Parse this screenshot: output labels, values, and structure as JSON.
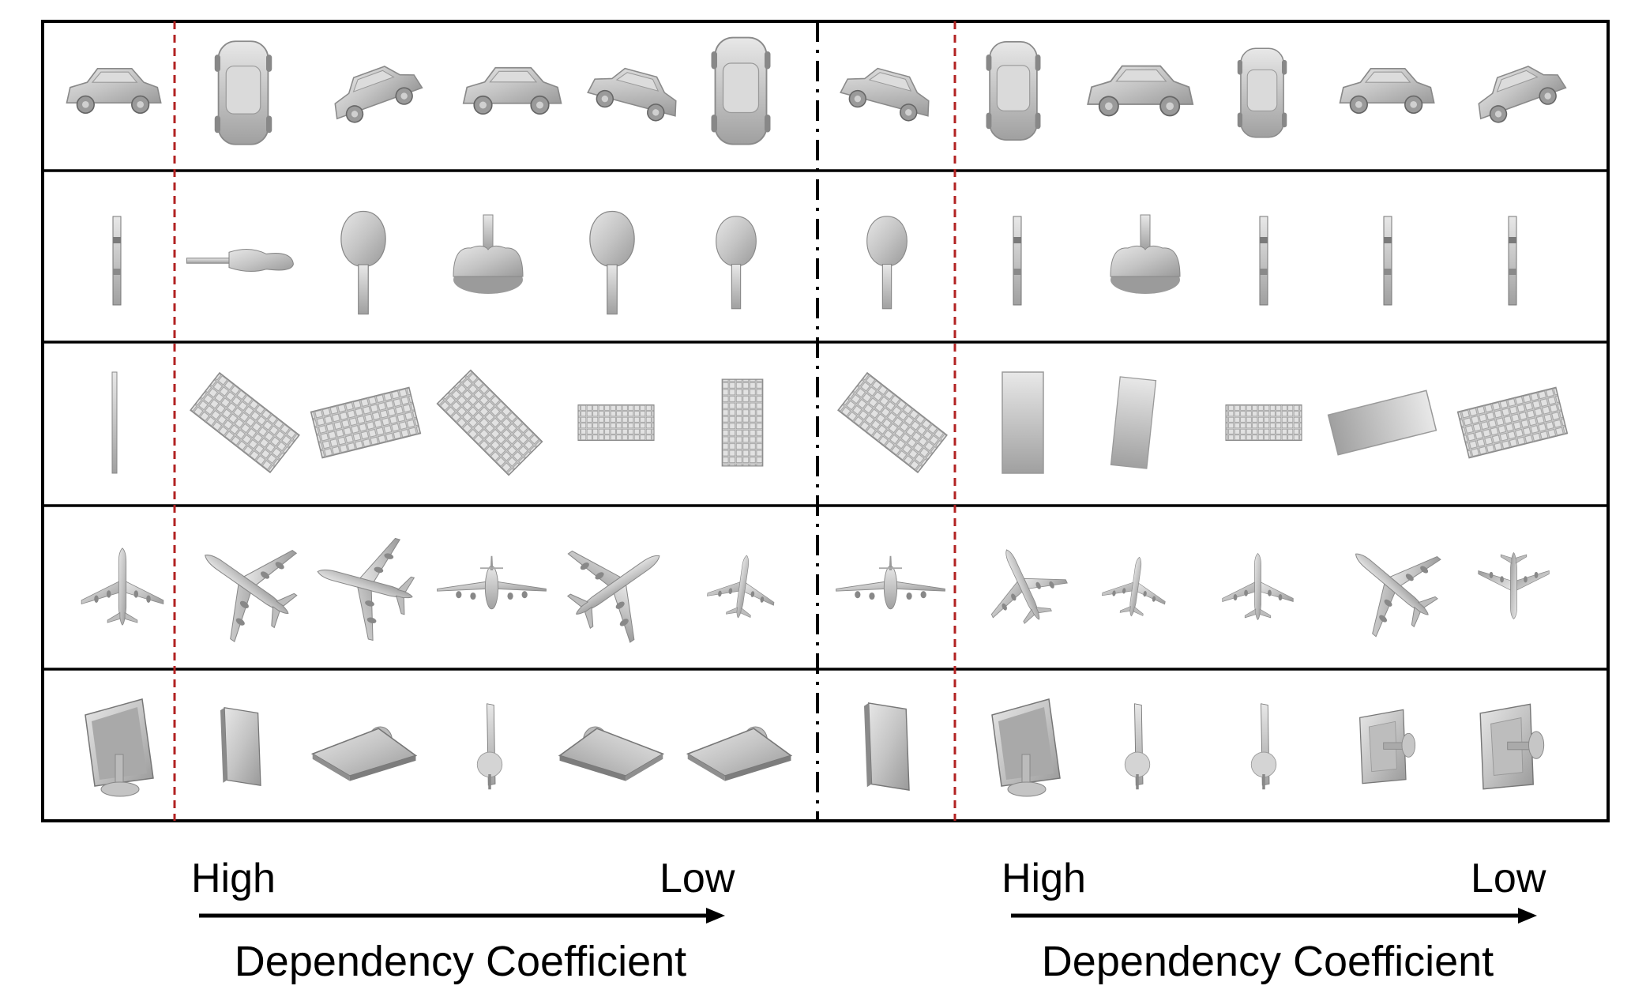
{
  "rows": [
    {
      "object": "car"
    },
    {
      "object": "guitar"
    },
    {
      "object": "keyboard"
    },
    {
      "object": "airplane"
    },
    {
      "object": "monitor"
    }
  ],
  "columns_per_panel": 5,
  "colors": {
    "border": "#000000",
    "red_divider": "#b22222",
    "render_fill": "#c8c8c8",
    "render_dark": "#8f8f8f",
    "render_light": "#e4e4e4"
  },
  "left_axis": {
    "start_label": "High",
    "end_label": "Low",
    "title": "Dependency Coefficient"
  },
  "right_axis": {
    "start_label": "High",
    "end_label": "Low",
    "title": "Dependency Coefficient"
  }
}
